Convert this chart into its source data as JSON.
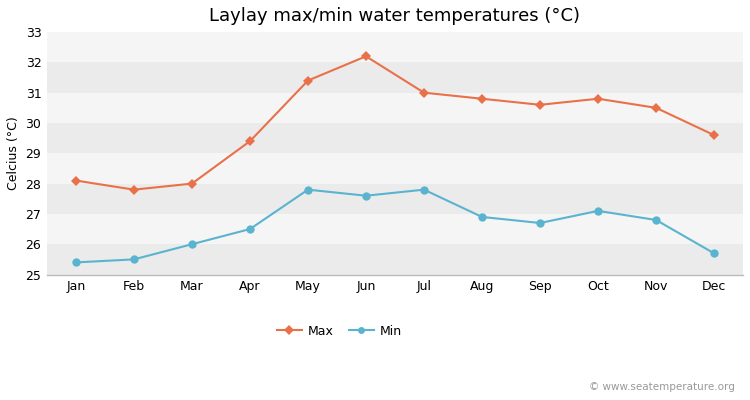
{
  "title": "Laylay max/min water temperatures (°C)",
  "ylabel": "Celcius (°C)",
  "months": [
    "Jan",
    "Feb",
    "Mar",
    "Apr",
    "May",
    "Jun",
    "Jul",
    "Aug",
    "Sep",
    "Oct",
    "Nov",
    "Dec"
  ],
  "max_values": [
    28.1,
    27.8,
    28.0,
    29.4,
    31.4,
    32.2,
    31.0,
    30.8,
    30.6,
    30.8,
    30.5,
    29.6
  ],
  "min_values": [
    25.4,
    25.5,
    26.0,
    26.5,
    27.8,
    27.6,
    27.8,
    26.9,
    26.7,
    27.1,
    26.8,
    25.7
  ],
  "max_color": "#e8714a",
  "min_color": "#5ab4cf",
  "bg_color": "#ffffff",
  "plot_bg_color_odd": "#ebebeb",
  "plot_bg_color_even": "#f5f5f5",
  "grid_color": "#ffffff",
  "ylim": [
    25,
    33
  ],
  "yticks": [
    25,
    26,
    27,
    28,
    29,
    30,
    31,
    32,
    33
  ],
  "legend_labels": [
    "Max",
    "Min"
  ],
  "watermark": "© www.seatemperature.org",
  "title_fontsize": 13,
  "label_fontsize": 9,
  "tick_fontsize": 9,
  "legend_fontsize": 9,
  "watermark_fontsize": 7.5
}
